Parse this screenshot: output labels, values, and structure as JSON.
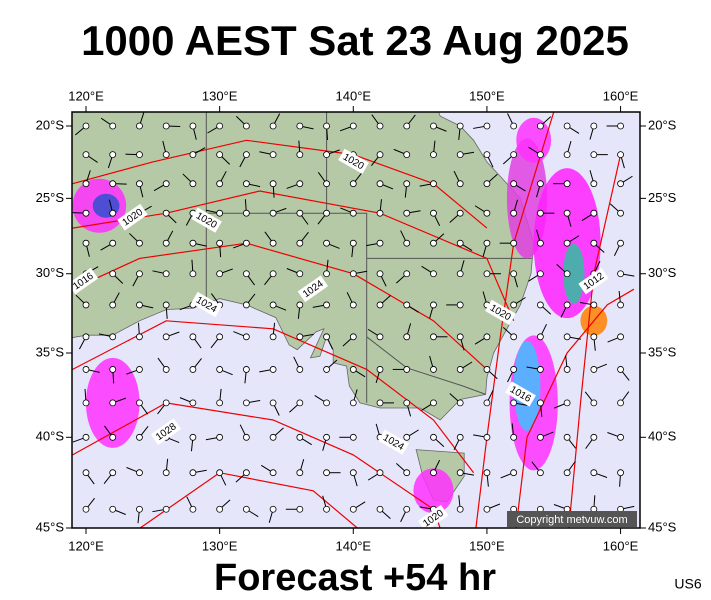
{
  "title": "1000 AEST Sat 23 Aug 2025",
  "lon_ticks": [
    {
      "value": 120,
      "label": "120°E"
    },
    {
      "value": 130,
      "label": "130°E"
    },
    {
      "value": 140,
      "label": "140°E"
    },
    {
      "value": 150,
      "label": "150°E"
    },
    {
      "value": 160,
      "label": "160°E"
    }
  ],
  "lat_ticks": [
    {
      "value": -20,
      "label": "20°S"
    },
    {
      "value": -25,
      "label": "25°S"
    },
    {
      "value": -30,
      "label": "30°S"
    },
    {
      "value": -35,
      "label": "35°S"
    },
    {
      "value": -40,
      "label": "40°S"
    },
    {
      "value": -45,
      "label": "45°S"
    }
  ],
  "isobar_labels": [
    "1020",
    "1020",
    "1020",
    "1016",
    "1024",
    "1024",
    "1020",
    "1012",
    "1016",
    "1028",
    "1024",
    "1020"
  ],
  "copyright": "Copyright metvuw.com",
  "footer": "Forecast +54 hr",
  "code": "US6"
}
